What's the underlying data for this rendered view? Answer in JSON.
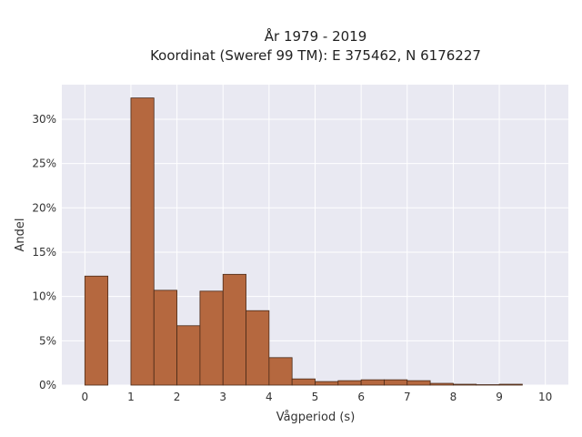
{
  "chart_data": {
    "type": "bar",
    "title": "År 1979 - 2019",
    "subtitle": "Koordinat (Sweref 99 TM): E 375462, N 6176227",
    "xlabel": "Vågperiod (s)",
    "ylabel": "Andel",
    "xlim": [
      -0.5,
      10.5
    ],
    "ylim": [
      0,
      0.339
    ],
    "x_ticks": [
      0,
      1,
      2,
      3,
      4,
      5,
      6,
      7,
      8,
      9,
      10
    ],
    "y_ticks": [
      0,
      0.05,
      0.1,
      0.15,
      0.2,
      0.25,
      0.3
    ],
    "y_tick_labels": [
      "0%",
      "5%",
      "10%",
      "15%",
      "20%",
      "25%",
      "30%"
    ],
    "bin_width": 0.5,
    "bins": [
      {
        "x0": 0.0,
        "value": 0.123
      },
      {
        "x0": 0.5,
        "value": 0.0
      },
      {
        "x0": 1.0,
        "value": 0.324
      },
      {
        "x0": 1.5,
        "value": 0.107
      },
      {
        "x0": 2.0,
        "value": 0.067
      },
      {
        "x0": 2.5,
        "value": 0.106
      },
      {
        "x0": 3.0,
        "value": 0.125
      },
      {
        "x0": 3.5,
        "value": 0.084
      },
      {
        "x0": 4.0,
        "value": 0.031
      },
      {
        "x0": 4.5,
        "value": 0.007
      },
      {
        "x0": 5.0,
        "value": 0.004
      },
      {
        "x0": 5.5,
        "value": 0.005
      },
      {
        "x0": 6.0,
        "value": 0.006
      },
      {
        "x0": 6.5,
        "value": 0.006
      },
      {
        "x0": 7.0,
        "value": 0.005
      },
      {
        "x0": 7.5,
        "value": 0.002
      },
      {
        "x0": 8.0,
        "value": 0.001
      },
      {
        "x0": 8.5,
        "value": 0.0005
      },
      {
        "x0": 9.0,
        "value": 0.001
      }
    ],
    "grid": true,
    "colors": {
      "bar_fill": "#b5683f",
      "bar_stroke": "#4a2a18",
      "plot_bg": "#e9e9f2",
      "grid": "#ffffff"
    }
  }
}
